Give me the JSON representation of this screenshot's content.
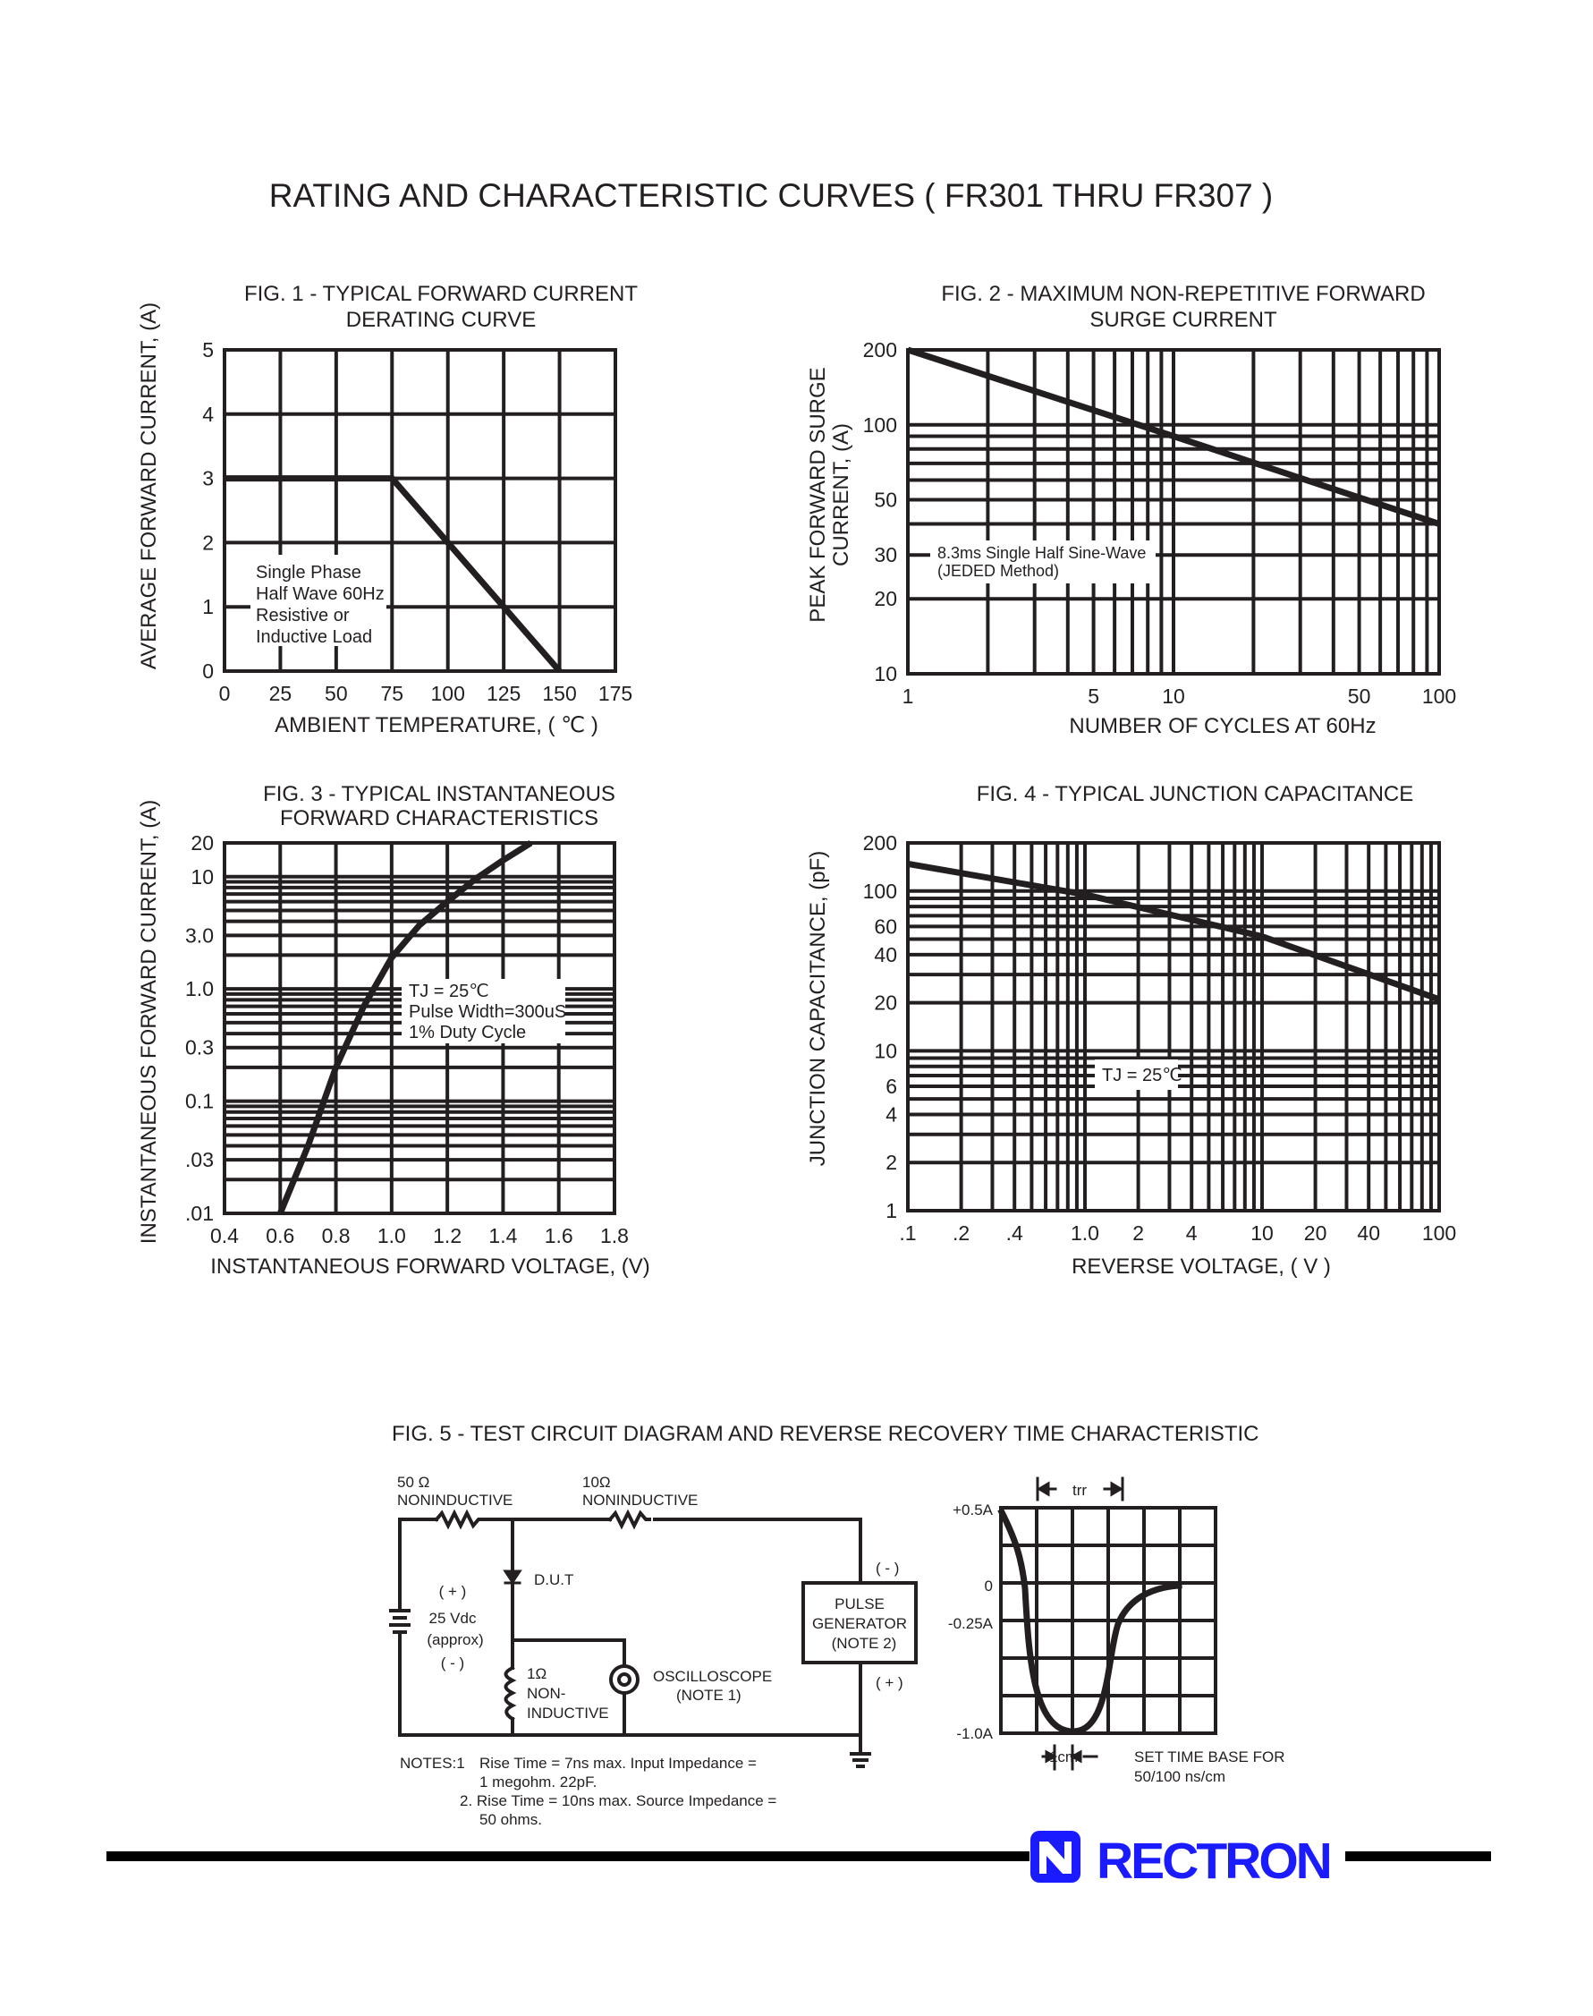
{
  "page_title": "RATING AND CHARACTERISTIC CURVES ( FR301 THRU FR307 )",
  "chart_data": [
    {
      "type": "line",
      "title": [
        "FIG. 1 - TYPICAL FORWARD CURRENT",
        "DERATING CURVE"
      ],
      "xlabel": "AMBIENT TEMPERATURE, ( ℃ )",
      "ylabel": [
        "AVERAGE FORWARD CURRENT, (A)"
      ],
      "xscale": "linear",
      "yscale": "linear",
      "xlim": [
        0,
        175
      ],
      "ylim": [
        0,
        5
      ],
      "xgrid": [
        25,
        50,
        75,
        100,
        125,
        150
      ],
      "ygrid": [
        1,
        2,
        3,
        4
      ],
      "xticks": [
        {
          "v": 0,
          "l": "0"
        },
        {
          "v": 25,
          "l": "25"
        },
        {
          "v": 50,
          "l": "50"
        },
        {
          "v": 75,
          "l": "75"
        },
        {
          "v": 100,
          "l": "100"
        },
        {
          "v": 125,
          "l": "125"
        },
        {
          "v": 150,
          "l": "150"
        },
        {
          "v": 175,
          "l": "175"
        }
      ],
      "yticks": [
        {
          "v": 0,
          "l": "0"
        },
        {
          "v": 1,
          "l": "1"
        },
        {
          "v": 2,
          "l": "2"
        },
        {
          "v": 3,
          "l": "3"
        },
        {
          "v": 4,
          "l": "4"
        },
        {
          "v": 5,
          "l": "5"
        }
      ],
      "series": [
        {
          "x": [
            0,
            75,
            150
          ],
          "y": [
            3,
            3,
            0
          ]
        }
      ],
      "annotation": [
        "Single Phase",
        "Half Wave 60Hz",
        "Resistive or",
        "Inductive Load"
      ],
      "grid": true
    },
    {
      "type": "line",
      "title": [
        "FIG. 2 - MAXIMUM NON-REPETITIVE FORWARD",
        "SURGE CURRENT"
      ],
      "xlabel": "NUMBER OF CYCLES AT 60Hz",
      "ylabel": [
        "PEAK FORWARD SURGE",
        "CURRENT, (A)"
      ],
      "xscale": "log",
      "yscale": "log",
      "xlim": [
        1,
        100
      ],
      "ylim": [
        10,
        200
      ],
      "xticks": [
        {
          "v": 1,
          "l": "1"
        },
        {
          "v": 5,
          "l": "5"
        },
        {
          "v": 10,
          "l": "10"
        },
        {
          "v": 50,
          "l": "50"
        },
        {
          "v": 100,
          "l": "100"
        }
      ],
      "yticks": [
        {
          "v": 10,
          "l": "10"
        },
        {
          "v": 20,
          "l": "20"
        },
        {
          "v": 30,
          "l": "30"
        },
        {
          "v": 50,
          "l": "50"
        },
        {
          "v": 100,
          "l": "100"
        },
        {
          "v": 200,
          "l": "200"
        }
      ],
      "series": [
        {
          "x": [
            1,
            10,
            100
          ],
          "y": [
            200,
            90,
            40
          ]
        }
      ],
      "annotation": [
        "8.3ms Single Half Sine-Wave",
        "(JEDED Method)"
      ],
      "grid": true
    },
    {
      "type": "line",
      "title": [
        "FIG. 3 - TYPICAL INSTANTANEOUS",
        "FORWARD CHARACTERISTICS"
      ],
      "xlabel": "INSTANTANEOUS FORWARD VOLTAGE, (V)",
      "ylabel": [
        "INSTANTANEOUS FORWARD CURRENT, (A)"
      ],
      "xscale": "linear",
      "yscale": "log",
      "xlim": [
        0.4,
        1.8
      ],
      "ylim": [
        0.01,
        20
      ],
      "xgrid": [
        0.6,
        0.8,
        1.0,
        1.2,
        1.4,
        1.6
      ],
      "xticks": [
        {
          "v": 0.4,
          "l": "0.4"
        },
        {
          "v": 0.6,
          "l": "0.6"
        },
        {
          "v": 0.8,
          "l": "0.8"
        },
        {
          "v": 1.0,
          "l": "1.0"
        },
        {
          "v": 1.2,
          "l": "1.2"
        },
        {
          "v": 1.4,
          "l": "1.4"
        },
        {
          "v": 1.6,
          "l": "1.6"
        },
        {
          "v": 1.8,
          "l": "1.8"
        }
      ],
      "yticks": [
        {
          "v": 0.01,
          "l": ".01"
        },
        {
          "v": 0.03,
          "l": ".03"
        },
        {
          "v": 0.1,
          "l": "0.1"
        },
        {
          "v": 0.3,
          "l": "0.3"
        },
        {
          "v": 1,
          "l": "1.0"
        },
        {
          "v": 3,
          "l": "3.0"
        },
        {
          "v": 10,
          "l": "10"
        },
        {
          "v": 20,
          "l": "20"
        }
      ],
      "series": [
        {
          "x": [
            0.6,
            0.7,
            0.8,
            0.9,
            1.0,
            1.1,
            1.2,
            1.3,
            1.4,
            1.5
          ],
          "y": [
            0.01,
            0.04,
            0.2,
            0.7,
            1.9,
            3.7,
            6,
            9.5,
            14,
            20
          ]
        }
      ],
      "annotation": [
        "TJ = 25℃",
        "Pulse Width=300uS",
        "1% Duty Cycle"
      ],
      "grid": true
    },
    {
      "type": "line",
      "title": [
        "FIG. 4 - TYPICAL JUNCTION CAPACITANCE"
      ],
      "xlabel": "REVERSE VOLTAGE, ( V )",
      "ylabel": [
        "JUNCTION CAPACITANCE, (pF)"
      ],
      "xscale": "log",
      "yscale": "log",
      "xlim": [
        0.1,
        100
      ],
      "ylim": [
        1,
        200
      ],
      "xticks": [
        {
          "v": 0.1,
          "l": ".1"
        },
        {
          "v": 0.2,
          "l": ".2"
        },
        {
          "v": 0.4,
          "l": ".4"
        },
        {
          "v": 1,
          "l": "1.0"
        },
        {
          "v": 2,
          "l": "2"
        },
        {
          "v": 4,
          "l": "4"
        },
        {
          "v": 10,
          "l": "10"
        },
        {
          "v": 20,
          "l": "20"
        },
        {
          "v": 40,
          "l": "40"
        },
        {
          "v": 100,
          "l": "100"
        }
      ],
      "yticks": [
        {
          "v": 1,
          "l": "1"
        },
        {
          "v": 2,
          "l": "2"
        },
        {
          "v": 4,
          "l": "4"
        },
        {
          "v": 6,
          "l": "6"
        },
        {
          "v": 10,
          "l": "10"
        },
        {
          "v": 20,
          "l": "20"
        },
        {
          "v": 40,
          "l": "40"
        },
        {
          "v": 60,
          "l": "60"
        },
        {
          "v": 100,
          "l": "100"
        },
        {
          "v": 200,
          "l": "200"
        }
      ],
      "series": [
        {
          "x": [
            0.1,
            1,
            10,
            100
          ],
          "y": [
            148,
            95,
            52,
            21
          ]
        }
      ],
      "annotation": [
        "TJ = 25℃"
      ],
      "grid": true
    }
  ],
  "fig5": {
    "title": "FIG. 5 - TEST CIRCUIT DIAGRAM  AND REVERSE RECOVERY TIME CHARACTERISTIC",
    "r1_value": "50 Ω",
    "r1_type": "NONINDUCTIVE",
    "r2_value": "10Ω",
    "r2_type": "NONINDUCTIVE",
    "dut": "D.U.T",
    "battery_plus": "( + )",
    "battery_value": "25 Vdc",
    "battery_approx": "(approx)",
    "battery_minus": "( - )",
    "r3_value": "1Ω",
    "r3_type_1": "NON-",
    "r3_type_2": "INDUCTIVE",
    "scope_label": "OSCILLOSCOPE",
    "scope_note": "(NOTE 1)",
    "pulse_1": "PULSE",
    "pulse_2": "GENERATOR",
    "pulse_3": "(NOTE 2)",
    "pulse_minus": "( - )",
    "pulse_plus": "( + )",
    "notes": {
      "label": "NOTES:1",
      "n1a": "Rise Time = 7ns max. Input Impedance =",
      "n1b": "1 megohm. 22pF.",
      "n2a": "2. Rise Time = 10ns max. Source Impedance =",
      "n2b": "50 ohms."
    },
    "waveform": {
      "trr": "trr",
      "y_labels": [
        "+0.5A",
        "0",
        "-0.25A",
        "-1.0A"
      ],
      "cm": "1cm",
      "timebase_1": "SET TIME BASE FOR",
      "timebase_2": "50/100 ns/cm"
    }
  },
  "logo": {
    "text": "RECTRON",
    "color": "#1b1bff"
  }
}
